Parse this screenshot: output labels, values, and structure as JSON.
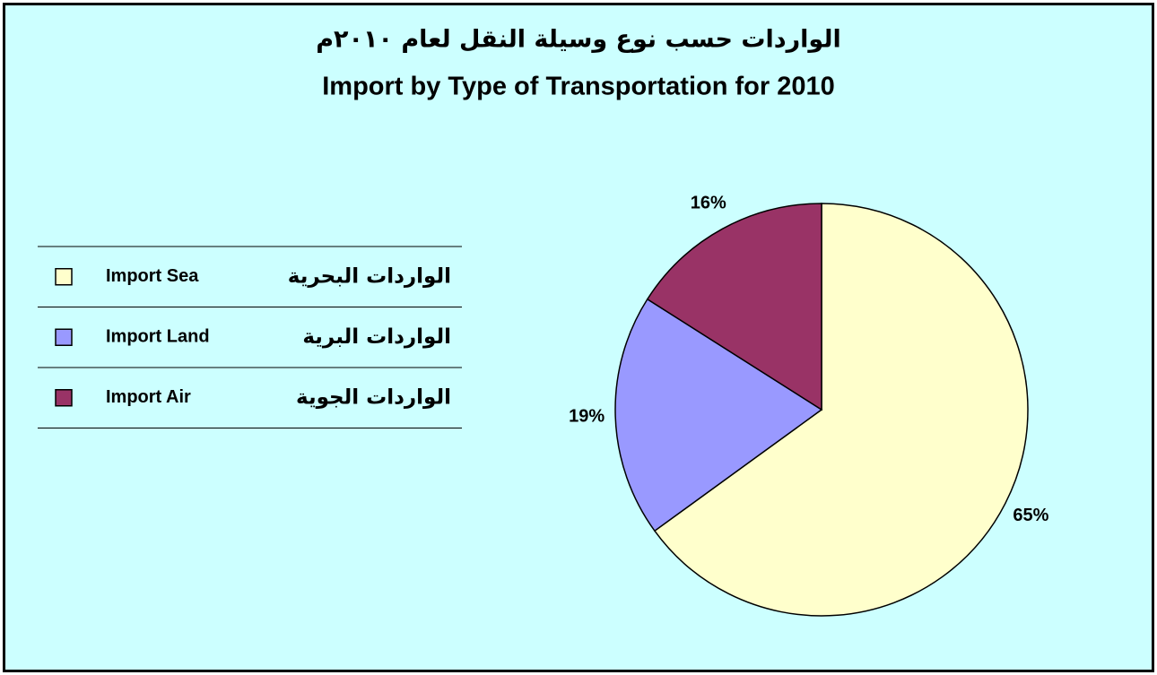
{
  "chart_data": {
    "type": "pie",
    "title": "الواردات حسب نوع وسيلة النقل لعام ٢٠١٠م",
    "subtitle": "Import by Type of Transportation for 2010",
    "categories": [
      "Import Sea",
      "Import Land",
      "Import Air"
    ],
    "categories_ar": [
      "الواردات البحرية",
      "الواردات البرية",
      "الواردات الجوية"
    ],
    "values": [
      65,
      19,
      16
    ],
    "value_labels": [
      "65%",
      "19%",
      "16%"
    ],
    "colors": [
      "#ffffcc",
      "#9999ff",
      "#993366"
    ],
    "legend": "left"
  }
}
